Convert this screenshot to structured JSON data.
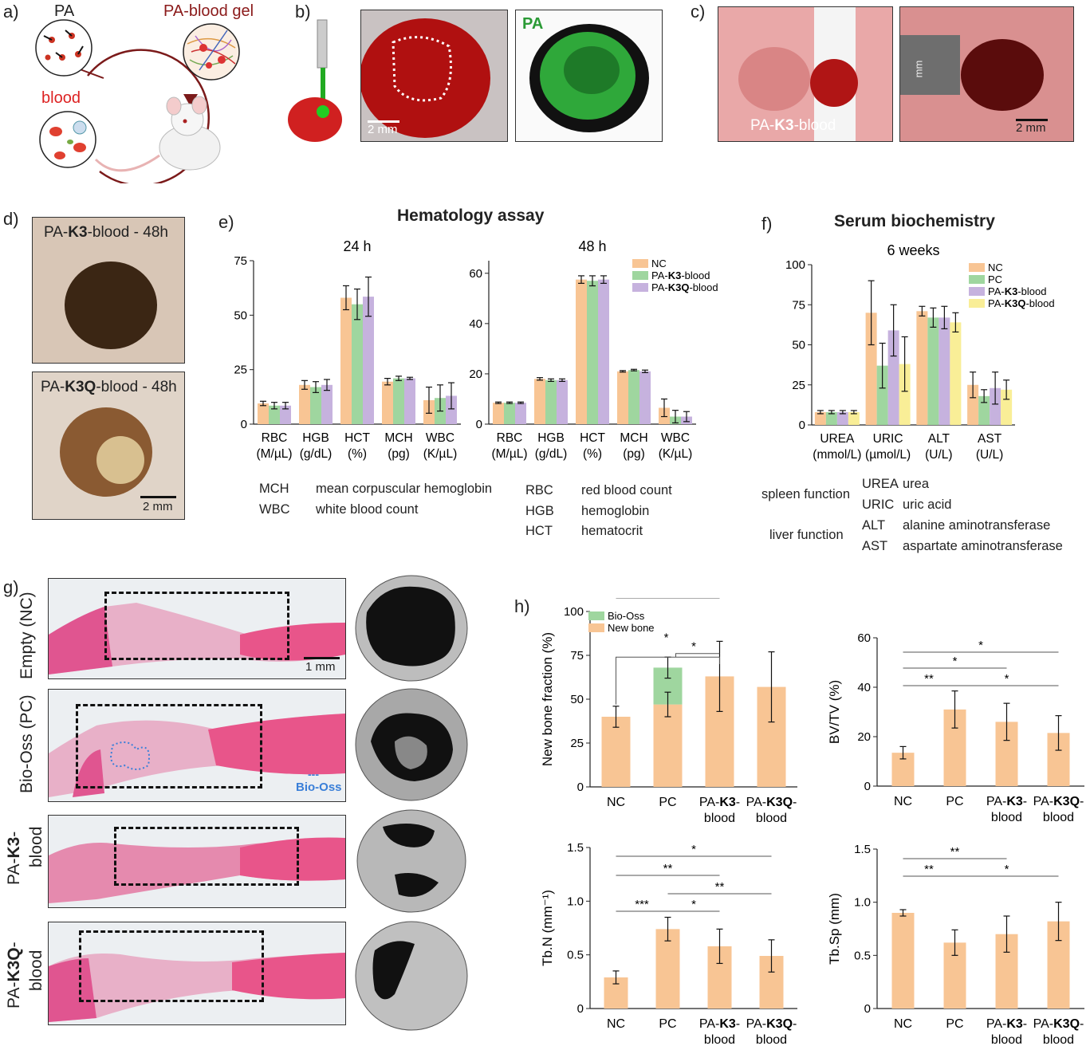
{
  "panel_labels": {
    "a": "a)",
    "b": "b)",
    "c": "c)",
    "d": "d)",
    "e": "e)",
    "f": "f)",
    "g": "g)",
    "h": "h)"
  },
  "panel_a": {
    "pa": "PA",
    "gel": "PA-blood gel",
    "blood": "blood"
  },
  "panel_b": {
    "pa_tag": "PA",
    "scale": "2 mm"
  },
  "panel_c": {
    "arrow_label_pre": "PA-",
    "arrow_label_bold": "K3",
    "arrow_label_post": "-blood",
    "scale": "2 mm",
    "ruler_unit": "mm"
  },
  "panel_d": {
    "top_pre": "PA-",
    "top_bold": "K3",
    "top_post": "-blood - 48h",
    "bottom_pre": "PA-",
    "bottom_bold": "K3Q",
    "bottom_post": "-blood - 48h",
    "scale": "2 mm"
  },
  "panel_e": {
    "title": "Hematology assay",
    "glossary": [
      {
        "abbr": "MCH",
        "full": "mean corpuscular hemoglobin"
      },
      {
        "abbr": "WBC",
        "full": "white blood count"
      },
      {
        "abbr": "RBC",
        "full": "red blood count"
      },
      {
        "abbr": "HGB",
        "full": "hemoglobin"
      },
      {
        "abbr": "HCT",
        "full": "hematocrit"
      }
    ]
  },
  "panel_f": {
    "title": "Serum biochemistry",
    "glossary": {
      "spleen": "spleen function",
      "liver": "liver function",
      "items": [
        {
          "abbr": "UREA",
          "full": "urea"
        },
        {
          "abbr": "URIC",
          "full": "uric acid"
        },
        {
          "abbr": "ALT",
          "full": "alanine aminotransferase"
        },
        {
          "abbr": "AST",
          "full": "aspartate aminotransferase"
        }
      ]
    }
  },
  "panel_g": {
    "rows": [
      "Empty (NC)",
      "Bio-Oss (PC)",
      "PA-K3-\nblood",
      "PA-K3Q-\nblood"
    ],
    "row1": "Empty (NC)",
    "row2": "Bio-Oss (PC)",
    "row3a_pre": "PA-",
    "row3a_bold": "K3",
    "row3a_post": "-",
    "row3b": "blood",
    "row4a_pre": "PA-",
    "row4a_bold": "K3Q",
    "row4a_post": "-",
    "row4b": "blood",
    "scale": "1 mm",
    "biooss_legend": "Bio-Oss",
    "biooss_dash": "---"
  },
  "colors": {
    "nc": "#f8c594",
    "pc": "#9fd69f",
    "k3": "#c6b2de",
    "k3q": "#f9ee97",
    "bioss": "#9fd69f",
    "newbone": "#f8c594",
    "err": "#111111"
  },
  "chart_data": [
    {
      "id": "e24",
      "type": "bar",
      "title": "24 h",
      "categories": [
        "RBC\n(M/µL)",
        "HGB\n(g/dL)",
        "HCT\n(%)",
        "MCH\n(pg)",
        "WBC\n(K/µL)"
      ],
      "ylim": [
        0,
        75
      ],
      "yticks": [
        0,
        25,
        50,
        75
      ],
      "series": [
        {
          "name": "NC",
          "values": [
            9.5,
            18,
            58,
            19.5,
            11
          ],
          "err": [
            1,
            2,
            5.5,
            1.5,
            6
          ]
        },
        {
          "name": "PA-K3-blood",
          "values": [
            8.5,
            17,
            55,
            21,
            12
          ],
          "err": [
            1.5,
            2.5,
            7,
            1,
            6
          ]
        },
        {
          "name": "PA-K3Q-blood",
          "values": [
            8.5,
            18,
            58.5,
            21,
            13
          ],
          "err": [
            1.5,
            2.5,
            9,
            0.5,
            6
          ]
        }
      ]
    },
    {
      "id": "e48",
      "type": "bar",
      "title": "48 h",
      "categories": [
        "RBC\n(M/µL)",
        "HGB\n(g/dL)",
        "HCT\n(%)",
        "MCH\n(pg)",
        "WBC\n(K/µL)"
      ],
      "ylim": [
        0,
        65
      ],
      "yticks": [
        0,
        20,
        40,
        60
      ],
      "legend": [
        "NC",
        "PA-K3-blood",
        "PA-K3Q-blood"
      ],
      "series": [
        {
          "name": "NC",
          "values": [
            8.5,
            18,
            57.5,
            21,
            6.5
          ],
          "err": [
            0.3,
            0.5,
            1.5,
            0.3,
            3.5
          ]
        },
        {
          "name": "PA-K3-blood",
          "values": [
            8.5,
            17.5,
            57,
            21.5,
            3
          ],
          "err": [
            0.3,
            0.5,
            2,
            0.3,
            2.5
          ]
        },
        {
          "name": "PA-K3Q-blood",
          "values": [
            8.5,
            17.5,
            57.5,
            21,
            3
          ],
          "err": [
            0.3,
            0.5,
            1.5,
            0.5,
            2
          ]
        }
      ]
    },
    {
      "id": "f",
      "type": "bar",
      "title": "6 weeks",
      "categories": [
        "UREA\n(mmol/L)",
        "URIC\n(µmol/L)",
        "ALT\n(U/L)",
        "AST\n(U/L)"
      ],
      "ylim": [
        0,
        100
      ],
      "yticks": [
        0,
        25,
        50,
        75,
        100
      ],
      "legend": [
        "NC",
        "PC",
        "PA-K3-blood",
        "PA-K3Q-blood"
      ],
      "series": [
        {
          "name": "NC",
          "values": [
            8,
            70,
            71,
            25
          ],
          "err": [
            1,
            20,
            3,
            8
          ]
        },
        {
          "name": "PC",
          "values": [
            8,
            37,
            67,
            18
          ],
          "err": [
            1,
            14,
            6,
            4
          ]
        },
        {
          "name": "PA-K3-blood",
          "values": [
            8,
            59,
            67,
            23
          ],
          "err": [
            1,
            16,
            7,
            10
          ]
        },
        {
          "name": "PA-K3Q-blood",
          "values": [
            8,
            38,
            64,
            22
          ],
          "err": [
            1,
            17,
            6,
            6
          ]
        }
      ]
    },
    {
      "id": "h1",
      "type": "bar",
      "ylabel": "New bone fraction (%)",
      "categories": [
        "NC",
        "PC",
        "PA-K3-\nblood",
        "PA-K3Q-\nblood"
      ],
      "ylim": [
        0,
        100
      ],
      "yticks": [
        0,
        25,
        50,
        75,
        100
      ],
      "legend": [
        "Bio-Oss",
        "New bone"
      ],
      "new_bone": [
        40,
        47,
        63,
        57
      ],
      "new_bone_err": [
        6,
        7,
        20,
        20
      ],
      "bio_oss": [
        0,
        21,
        0,
        0
      ],
      "bio_oss_err": [
        0,
        6,
        0,
        0
      ],
      "sig": [
        {
          "from": 0,
          "to": 1,
          "label": "*"
        },
        {
          "from": 1,
          "to": 2,
          "label": "*"
        }
      ]
    },
    {
      "id": "h2",
      "type": "bar",
      "ylabel": "BV/TV (%)",
      "categories": [
        "NC",
        "PC",
        "PA-K3-\nblood",
        "PA-K3Q-\nblood"
      ],
      "ylim": [
        0,
        60
      ],
      "yticks": [
        0,
        20,
        40,
        60
      ],
      "values": [
        13.5,
        31,
        26,
        21.5
      ],
      "err": [
        2.5,
        7.5,
        7.5,
        7
      ],
      "sig": [
        {
          "from": 0,
          "to": 1,
          "label": "**"
        },
        {
          "from": 1,
          "to": 3,
          "label": "*"
        },
        {
          "from": 0,
          "to": 2,
          "label": "*"
        },
        {
          "from": 0,
          "to": 3,
          "label": "*"
        }
      ]
    },
    {
      "id": "h3",
      "type": "bar",
      "ylabel": "Tb.N (mm⁻¹)",
      "categories": [
        "NC",
        "PC",
        "PA-K3-\nblood",
        "PA-K3Q-\nblood"
      ],
      "ylim": [
        0,
        1.5
      ],
      "yticks": [
        0,
        0.5,
        1.0,
        1.5
      ],
      "ytick_labels": [
        "0",
        "0.5",
        "1.0",
        "1.5"
      ],
      "values": [
        0.29,
        0.74,
        0.58,
        0.49
      ],
      "err": [
        0.06,
        0.11,
        0.16,
        0.15
      ],
      "sig": [
        {
          "from": 0,
          "to": 1,
          "label": "***"
        },
        {
          "from": 1,
          "to": 2,
          "label": "*"
        },
        {
          "from": 1,
          "to": 3,
          "label": "**"
        },
        {
          "from": 0,
          "to": 2,
          "label": "**"
        },
        {
          "from": 0,
          "to": 3,
          "label": "*"
        }
      ]
    },
    {
      "id": "h4",
      "type": "bar",
      "ylabel": "Tb.Sp (mm)",
      "categories": [
        "NC",
        "PC",
        "PA-K3-\nblood",
        "PA-K3Q-\nblood"
      ],
      "ylim": [
        0,
        1.5
      ],
      "yticks": [
        0,
        0.5,
        1.0,
        1.5
      ],
      "ytick_labels": [
        "0",
        "0.5",
        "1.0",
        "1.5"
      ],
      "values": [
        0.9,
        0.62,
        0.7,
        0.82
      ],
      "err": [
        0.03,
        0.12,
        0.17,
        0.18
      ],
      "sig": [
        {
          "from": 0,
          "to": 1,
          "label": "**"
        },
        {
          "from": 1,
          "to": 3,
          "label": "*"
        },
        {
          "from": 0,
          "to": 2,
          "label": "**"
        }
      ]
    }
  ]
}
